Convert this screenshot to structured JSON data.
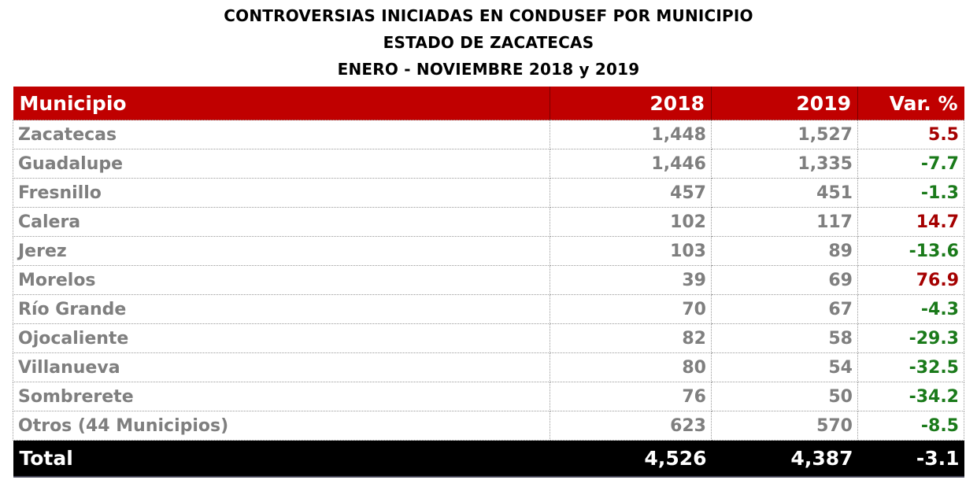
{
  "title": {
    "line1": "CONTROVERSIAS INICIADAS EN CONDUSEF POR MUNICIPIO",
    "line2": "ESTADO DE ZACATECAS",
    "line3": "ENERO - NOVIEMBRE 2018 y 2019"
  },
  "colors": {
    "header_bg": "#c00000",
    "positive": "#a50000",
    "negative": "#1a7a1a",
    "total_bg": "#000000"
  },
  "headers": [
    "Municipio",
    "2018",
    "2019",
    "Var. %"
  ],
  "rows": [
    [
      "Zacatecas",
      "1,448",
      "1,527",
      "5.5"
    ],
    [
      "Guadalupe",
      "1,446",
      "1,335",
      "-7.7"
    ],
    [
      "Fresnillo",
      "457",
      "451",
      "-1.3"
    ],
    [
      "Calera",
      "102",
      "117",
      "14.7"
    ],
    [
      "Jerez",
      "103",
      "89",
      "-13.6"
    ],
    [
      "Morelos",
      "39",
      "69",
      "76.9"
    ],
    [
      "Río Grande",
      "70",
      "67",
      "-4.3"
    ],
    [
      "Ojocaliente",
      "82",
      "58",
      "-29.3"
    ],
    [
      "Villanueva",
      "80",
      "54",
      "-32.5"
    ],
    [
      "Sombrerete",
      "76",
      "50",
      "-34.2"
    ],
    [
      "Otros (44 Municipios)",
      "623",
      "570",
      "-8.5"
    ]
  ],
  "total": [
    "Total",
    "4,526",
    "4,387",
    "-3.1"
  ]
}
